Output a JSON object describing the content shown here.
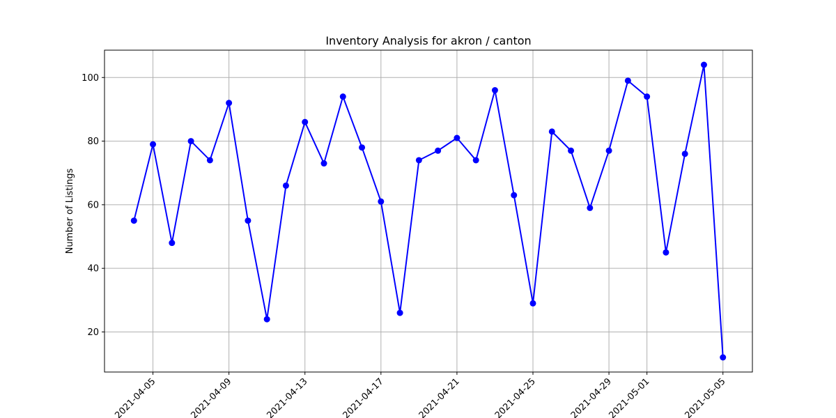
{
  "chart_data": {
    "type": "line",
    "title": "Inventory Analysis for akron / canton",
    "xlabel": "",
    "ylabel": "Number of Listings",
    "grid": true,
    "line_color": "#0000ff",
    "x": [
      "2021-04-04",
      "2021-04-05",
      "2021-04-06",
      "2021-04-07",
      "2021-04-08",
      "2021-04-09",
      "2021-04-10",
      "2021-04-11",
      "2021-04-12",
      "2021-04-13",
      "2021-04-14",
      "2021-04-15",
      "2021-04-16",
      "2021-04-17",
      "2021-04-18",
      "2021-04-19",
      "2021-04-20",
      "2021-04-21",
      "2021-04-22",
      "2021-04-23",
      "2021-04-24",
      "2021-04-25",
      "2021-04-26",
      "2021-04-27",
      "2021-04-28",
      "2021-04-29",
      "2021-04-30",
      "2021-05-01",
      "2021-05-02",
      "2021-05-03",
      "2021-05-04",
      "2021-05-05"
    ],
    "values": [
      55,
      79,
      48,
      80,
      74,
      92,
      55,
      24,
      66,
      86,
      73,
      94,
      78,
      61,
      26,
      74,
      77,
      81,
      74,
      96,
      63,
      29,
      83,
      77,
      59,
      77,
      99,
      94,
      45,
      76,
      104,
      12
    ],
    "x_ticks": [
      "2021-04-05",
      "2021-04-09",
      "2021-04-13",
      "2021-04-17",
      "2021-04-21",
      "2021-04-25",
      "2021-04-29",
      "2021-05-01",
      "2021-05-05"
    ],
    "y_ticks": [
      "20",
      "40",
      "60",
      "80",
      "100"
    ],
    "ylim": [
      7.4,
      108.6
    ]
  }
}
